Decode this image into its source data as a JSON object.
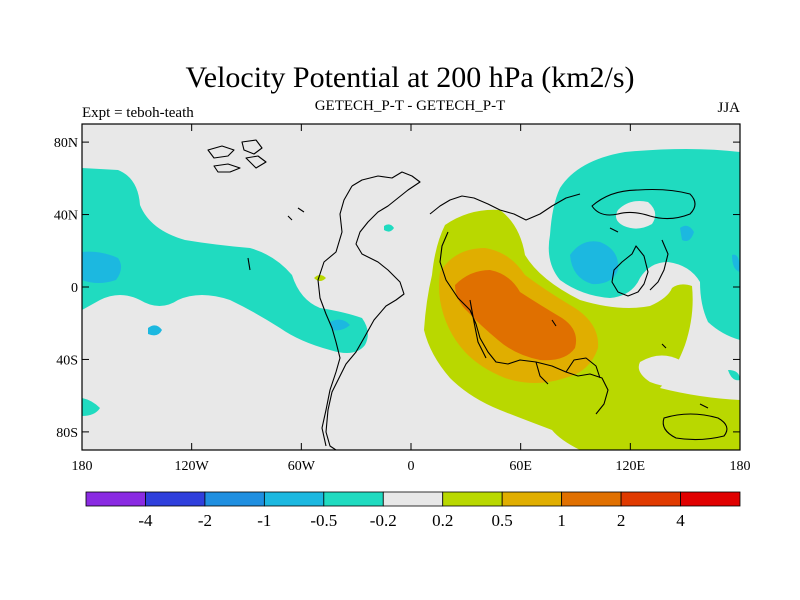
{
  "chart_data": {
    "type": "heatmap",
    "title": "Velocity Potential at 200 hPa (km2/s)",
    "left_label": "Expt = teboh-teath",
    "center_label": "GETECH_P-T - GETECH_P-T",
    "right_label": "JJA",
    "x_range": [
      -180,
      180
    ],
    "y_range": [
      -90,
      90
    ],
    "x_ticks": [
      {
        "value": -180,
        "label": "180"
      },
      {
        "value": -120,
        "label": "120W"
      },
      {
        "value": -60,
        "label": "60W"
      },
      {
        "value": 0,
        "label": "0"
      },
      {
        "value": 60,
        "label": "60E"
      },
      {
        "value": 120,
        "label": "120E"
      },
      {
        "value": 180,
        "label": "180"
      }
    ],
    "y_ticks": [
      {
        "value": 80,
        "label": "80N"
      },
      {
        "value": 40,
        "label": "40N"
      },
      {
        "value": 0,
        "label": "0"
      },
      {
        "value": -40,
        "label": "40S"
      },
      {
        "value": -80,
        "label": "80S"
      }
    ],
    "colorbar": {
      "colors": [
        "#8a2be2",
        "#2f3fdc",
        "#1f8fe0",
        "#1cb8e0",
        "#20dbc0",
        "#e8e8e8",
        "#b9d800",
        "#e0ae00",
        "#e07000",
        "#e03a00",
        "#e00000"
      ],
      "labels": [
        "-4",
        "-2",
        "-1",
        "-0.5",
        "-0.2",
        "0.2",
        "0.5",
        "1",
        "2",
        "4"
      ]
    }
  }
}
